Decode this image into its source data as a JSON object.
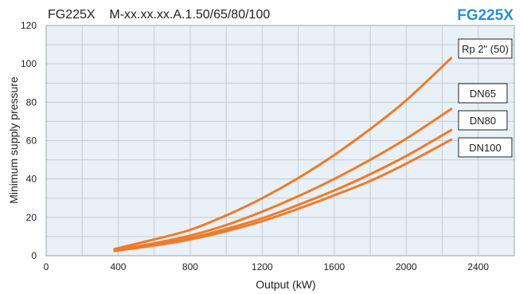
{
  "chart_data": {
    "type": "line",
    "title": "FG225X    M-xx.xx.xx.A.1.50/65/80/100",
    "brand_title": "FG225X",
    "xlabel": "Output (kW)",
    "ylabel": "Minimum supply pressure",
    "xlim": [
      0,
      2600
    ],
    "ylim": [
      0,
      120
    ],
    "x_ticks": [
      0,
      400,
      800,
      1200,
      1600,
      2000,
      2400
    ],
    "y_ticks": [
      0,
      20,
      40,
      60,
      80,
      100,
      120
    ],
    "grid": true,
    "series": [
      {
        "name": "Rp 2\" (50)",
        "x": [
          380,
          600,
          800,
          1000,
          1200,
          1400,
          1600,
          1800,
          2000,
          2250
        ],
        "y": [
          3.5,
          8.5,
          13.5,
          21,
          30,
          40.5,
          52.5,
          66,
          81,
          103
        ]
      },
      {
        "name": "DN65",
        "x": [
          380,
          600,
          800,
          1000,
          1200,
          1400,
          1600,
          1800,
          2000,
          2250
        ],
        "y": [
          3,
          6.5,
          10.5,
          16,
          23,
          31,
          40,
          50,
          61,
          76.5
        ]
      },
      {
        "name": "DN80",
        "x": [
          380,
          600,
          800,
          1000,
          1200,
          1400,
          1600,
          1800,
          2000,
          2250
        ],
        "y": [
          2.8,
          5.8,
          9.2,
          14,
          19.5,
          26.5,
          34,
          42.5,
          52,
          65.5
        ]
      },
      {
        "name": "DN100",
        "x": [
          380,
          600,
          800,
          1000,
          1200,
          1400,
          1600,
          1800,
          2000,
          2250
        ],
        "y": [
          2.5,
          5.3,
          8.5,
          12.8,
          18,
          24.5,
          31.5,
          39,
          48,
          60.5
        ]
      }
    ]
  },
  "colors": {
    "line": "#f07a2a",
    "brand": "#2a8fd0",
    "plot_bg": "#e8f1f7",
    "grid": "#c6ccd2"
  }
}
